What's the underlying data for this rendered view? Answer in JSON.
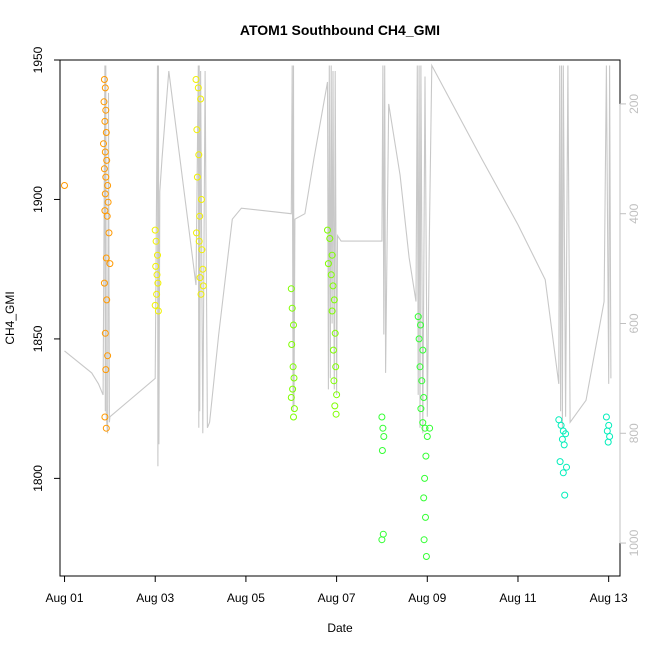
{
  "chart_data": {
    "type": "scatter",
    "title": "ATOM1 Southbound CH4_GMI",
    "xlabel": "Date",
    "ylabel": "CH4_GMI",
    "ylim": [
      1765,
      1950
    ],
    "xlim": [
      -0.1,
      12.25
    ],
    "y2lim": [
      1060,
      120
    ],
    "x_ticks": [
      0,
      2,
      4,
      6,
      8,
      10,
      12
    ],
    "x_tick_labels": [
      "Aug 01",
      "Aug 03",
      "Aug 05",
      "Aug 07",
      "Aug 09",
      "Aug 11",
      "Aug 13"
    ],
    "y_ticks": [
      1800,
      1850,
      1900,
      1950
    ],
    "y2_ticks": [
      200,
      400,
      600,
      800,
      1000
    ],
    "y2_color": "#c0c0c0",
    "altitude_path_color": "#c8c8c8",
    "grid": false,
    "legend": "none",
    "altitude_path": [
      [
        0.0,
        650
      ],
      [
        0.15,
        660
      ],
      [
        0.6,
        690
      ],
      [
        0.75,
        710
      ],
      [
        0.85,
        730
      ],
      [
        0.88,
        300
      ],
      [
        0.89,
        130
      ],
      [
        0.9,
        760
      ],
      [
        0.91,
        130
      ],
      [
        0.92,
        770
      ],
      [
        0.95,
        800
      ],
      [
        0.97,
        180
      ],
      [
        0.99,
        780
      ],
      [
        1.0,
        770
      ],
      [
        2.0,
        700
      ],
      [
        2.05,
        130
      ],
      [
        2.06,
        860
      ],
      [
        2.07,
        130
      ],
      [
        2.08,
        820
      ],
      [
        2.1,
        360
      ],
      [
        2.15,
        300
      ],
      [
        2.3,
        140
      ],
      [
        2.9,
        530
      ],
      [
        2.95,
        130
      ],
      [
        2.96,
        790
      ],
      [
        2.97,
        130
      ],
      [
        2.98,
        760
      ],
      [
        3.0,
        140
      ],
      [
        3.05,
        800
      ],
      [
        3.1,
        140
      ],
      [
        3.15,
        790
      ],
      [
        3.2,
        780
      ],
      [
        3.4,
        620
      ],
      [
        3.7,
        410
      ],
      [
        3.9,
        390
      ],
      [
        5.0,
        400
      ],
      [
        5.02,
        130
      ],
      [
        5.04,
        760
      ],
      [
        5.05,
        130
      ],
      [
        5.06,
        750
      ],
      [
        5.08,
        410
      ],
      [
        5.3,
        400
      ],
      [
        5.5,
        300
      ],
      [
        5.8,
        160
      ],
      [
        5.82,
        720
      ],
      [
        5.84,
        130
      ],
      [
        5.86,
        700
      ],
      [
        5.88,
        130
      ],
      [
        5.9,
        600
      ],
      [
        5.92,
        140
      ],
      [
        5.95,
        720
      ],
      [
        5.97,
        140
      ],
      [
        6.0,
        730
      ],
      [
        6.02,
        440
      ],
      [
        6.1,
        450
      ],
      [
        7.0,
        450
      ],
      [
        7.02,
        130
      ],
      [
        7.04,
        620
      ],
      [
        7.06,
        130
      ],
      [
        7.08,
        690
      ],
      [
        7.15,
        200
      ],
      [
        7.4,
        330
      ],
      [
        7.6,
        480
      ],
      [
        7.75,
        560
      ],
      [
        7.78,
        130
      ],
      [
        7.8,
        730
      ],
      [
        7.82,
        130
      ],
      [
        7.84,
        790
      ],
      [
        7.86,
        130
      ],
      [
        7.9,
        800
      ],
      [
        7.95,
        150
      ],
      [
        8.0,
        770
      ],
      [
        8.05,
        410
      ],
      [
        8.1,
        130
      ],
      [
        9.2,
        300
      ],
      [
        10.0,
        420
      ],
      [
        10.6,
        520
      ],
      [
        10.9,
        710
      ],
      [
        10.92,
        130
      ],
      [
        10.94,
        760
      ],
      [
        10.96,
        130
      ],
      [
        10.98,
        790
      ],
      [
        11.0,
        130
      ],
      [
        11.05,
        770
      ],
      [
        11.1,
        130
      ],
      [
        11.15,
        780
      ],
      [
        11.5,
        740
      ],
      [
        11.9,
        560
      ],
      [
        11.95,
        130
      ],
      [
        12.0,
        710
      ],
      [
        12.02,
        130
      ],
      [
        12.05,
        700
      ]
    ],
    "series": [
      {
        "color": "#ff9900",
        "points": [
          [
            0.0,
            1905
          ],
          [
            0.88,
            1943
          ],
          [
            0.9,
            1940
          ],
          [
            0.87,
            1935
          ],
          [
            0.91,
            1932
          ],
          [
            0.89,
            1928
          ],
          [
            0.92,
            1924
          ],
          [
            0.86,
            1920
          ],
          [
            0.9,
            1917
          ],
          [
            0.93,
            1914
          ],
          [
            0.88,
            1911
          ],
          [
            0.91,
            1908
          ],
          [
            0.95,
            1905
          ],
          [
            0.9,
            1902
          ],
          [
            0.96,
            1899
          ],
          [
            0.89,
            1896
          ],
          [
            0.94,
            1894
          ],
          [
            0.98,
            1888
          ],
          [
            0.92,
            1879
          ],
          [
            0.88,
            1870
          ],
          [
            0.93,
            1864
          ],
          [
            0.9,
            1852
          ],
          [
            0.95,
            1844
          ],
          [
            0.91,
            1839
          ],
          [
            0.89,
            1822
          ],
          [
            0.92,
            1818
          ],
          [
            1.0,
            1877
          ]
        ]
      },
      {
        "color": "#f0f000",
        "points": [
          [
            2.0,
            1889
          ],
          [
            2.02,
            1885
          ],
          [
            2.05,
            1880
          ],
          [
            2.01,
            1876
          ],
          [
            2.04,
            1873
          ],
          [
            2.06,
            1870
          ],
          [
            2.03,
            1866
          ],
          [
            2.0,
            1862
          ],
          [
            2.07,
            1860
          ],
          [
            2.9,
            1943
          ],
          [
            2.95,
            1940
          ],
          [
            3.0,
            1936
          ],
          [
            2.92,
            1925
          ],
          [
            2.96,
            1916
          ],
          [
            2.93,
            1908
          ],
          [
            3.02,
            1900
          ],
          [
            2.98,
            1894
          ],
          [
            2.91,
            1888
          ],
          [
            2.97,
            1885
          ],
          [
            3.03,
            1882
          ],
          [
            3.05,
            1875
          ],
          [
            2.99,
            1872
          ],
          [
            3.06,
            1869
          ],
          [
            3.01,
            1866
          ]
        ]
      },
      {
        "color": "#7fff00",
        "points": [
          [
            5.0,
            1868
          ],
          [
            5.02,
            1861
          ],
          [
            5.05,
            1855
          ],
          [
            5.01,
            1848
          ],
          [
            5.04,
            1840
          ],
          [
            5.06,
            1836
          ],
          [
            5.03,
            1832
          ],
          [
            5.0,
            1829
          ],
          [
            5.07,
            1825
          ],
          [
            5.05,
            1822
          ],
          [
            5.8,
            1889
          ],
          [
            5.85,
            1886
          ],
          [
            5.9,
            1880
          ],
          [
            5.82,
            1877
          ],
          [
            5.88,
            1873
          ],
          [
            5.92,
            1869
          ],
          [
            5.95,
            1864
          ],
          [
            5.9,
            1860
          ],
          [
            5.97,
            1852
          ],
          [
            5.93,
            1846
          ],
          [
            5.98,
            1840
          ],
          [
            5.94,
            1835
          ],
          [
            6.0,
            1830
          ],
          [
            5.96,
            1826
          ],
          [
            5.99,
            1823
          ]
        ]
      },
      {
        "color": "#33ff33",
        "points": [
          [
            7.0,
            1822
          ],
          [
            7.02,
            1818
          ],
          [
            7.04,
            1815
          ],
          [
            7.01,
            1810
          ],
          [
            7.03,
            1780
          ],
          [
            7.0,
            1778
          ],
          [
            7.8,
            1858
          ],
          [
            7.85,
            1855
          ],
          [
            7.82,
            1850
          ],
          [
            7.9,
            1846
          ],
          [
            7.84,
            1840
          ],
          [
            7.88,
            1835
          ],
          [
            7.92,
            1829
          ],
          [
            7.86,
            1825
          ],
          [
            7.9,
            1820
          ],
          [
            7.95,
            1818
          ],
          [
            8.0,
            1815
          ],
          [
            7.94,
            1800
          ],
          [
            7.92,
            1793
          ],
          [
            7.96,
            1786
          ],
          [
            7.93,
            1778
          ],
          [
            7.98,
            1772
          ],
          [
            8.05,
            1818
          ],
          [
            7.97,
            1808
          ]
        ]
      },
      {
        "color": "#00eebb",
        "points": [
          [
            10.9,
            1821
          ],
          [
            10.95,
            1819
          ],
          [
            11.0,
            1817
          ],
          [
            11.05,
            1816
          ],
          [
            10.98,
            1814
          ],
          [
            11.02,
            1812
          ],
          [
            10.93,
            1806
          ],
          [
            11.07,
            1804
          ],
          [
            11.0,
            1802
          ],
          [
            11.03,
            1794
          ],
          [
            11.95,
            1822
          ],
          [
            12.0,
            1819
          ],
          [
            11.97,
            1817
          ],
          [
            12.02,
            1815
          ],
          [
            11.99,
            1813
          ]
        ]
      }
    ]
  }
}
